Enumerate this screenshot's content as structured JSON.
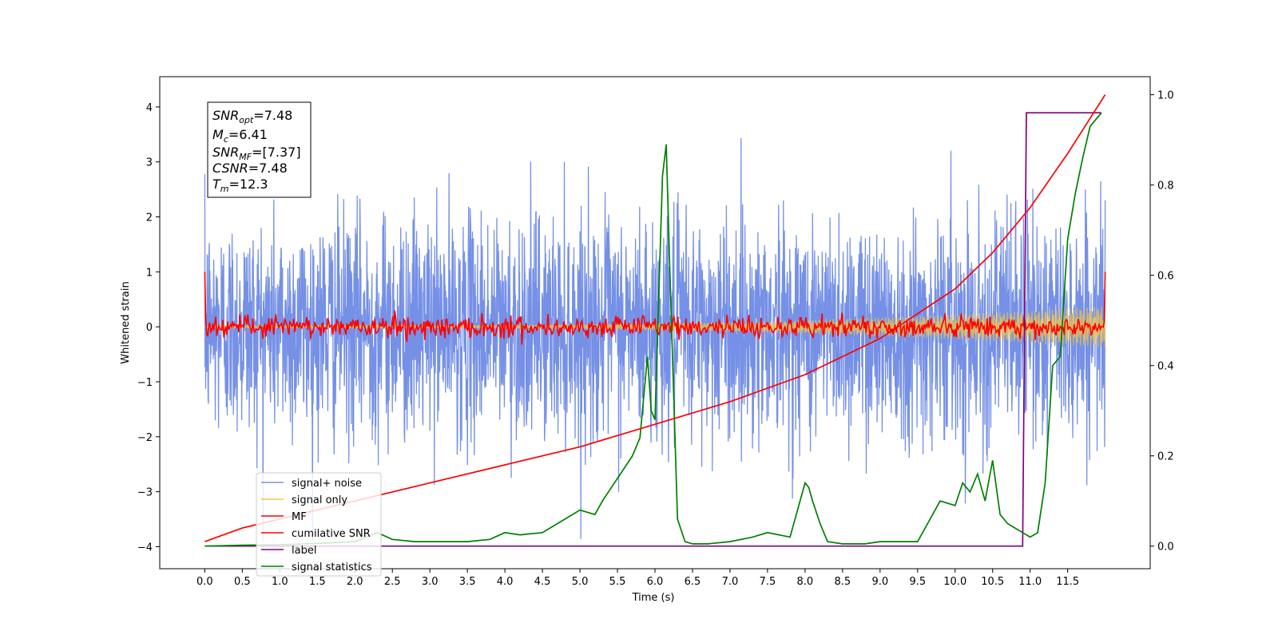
{
  "chart_data": {
    "type": "line",
    "xlabel": "Time (s)",
    "ylabel": "Whitened strain",
    "xlim": [
      -0.6,
      12.6
    ],
    "ylim": [
      -4.4,
      4.55
    ],
    "y2lim": [
      -0.05,
      1.04
    ],
    "x_ticks": [
      "0.0",
      "0.5",
      "1.0",
      "1.5",
      "2.0",
      "2.5",
      "3.0",
      "3.5",
      "4.0",
      "4.5",
      "5.0",
      "5.5",
      "6.0",
      "6.5",
      "7.0",
      "7.5",
      "8.0",
      "8.5",
      "9.0",
      "9.5",
      "10.0",
      "10.5",
      "11.0",
      "11.5"
    ],
    "y_ticks": [
      4,
      3,
      2,
      1,
      0,
      -1,
      -2,
      -3,
      -4
    ],
    "y_tick_labels": [
      "4",
      "3",
      "2",
      "1",
      "0",
      "−1",
      "−2",
      "−3",
      "−4"
    ],
    "y2_ticks": [
      1.0,
      0.8,
      0.6,
      0.4,
      0.2,
      0.0
    ],
    "y2_tick_labels": [
      "1.0",
      "0.8",
      "0.6",
      "0.4",
      "0.2",
      "0.0"
    ],
    "series": [
      {
        "name": "signal+ noise",
        "axis": "left",
        "color": "#7590e6",
        "kind": "noise",
        "x_range": [
          0,
          12.0
        ],
        "std": 1.0,
        "max": 4.17,
        "min": -3.9
      },
      {
        "name": "signal only",
        "axis": "left",
        "color": "#f5c542",
        "kind": "chirp",
        "x_range": [
          0,
          12.0
        ],
        "envelope_start": 0.02,
        "envelope_end": 0.38
      },
      {
        "name": "MF",
        "axis": "left",
        "color": "#ff0000",
        "kind": "noise",
        "x_range": [
          0,
          12.0
        ],
        "std": 0.1,
        "start_value": 1.0,
        "end_value": 1.0
      },
      {
        "name": "cumilative SNR",
        "axis": "right",
        "color": "#ff0000",
        "x": [
          0.0,
          0.5,
          1.0,
          2.0,
          3.0,
          4.0,
          5.0,
          6.0,
          7.0,
          8.0,
          9.0,
          10.0,
          10.5,
          11.0,
          11.5,
          12.0
        ],
        "y": [
          0.01,
          0.04,
          0.06,
          0.1,
          0.14,
          0.18,
          0.22,
          0.27,
          0.32,
          0.38,
          0.46,
          0.57,
          0.65,
          0.75,
          0.87,
          1.0
        ]
      },
      {
        "name": "label",
        "axis": "right",
        "color": "#800080",
        "x": [
          0.0,
          10.9,
          10.9,
          10.95,
          11.95
        ],
        "y": [
          0.0,
          0.0,
          0.0,
          0.96,
          0.96
        ]
      },
      {
        "name": "signal statistics",
        "axis": "right",
        "color": "#008000",
        "x": [
          0.0,
          0.5,
          1.0,
          1.5,
          2.0,
          2.3,
          2.5,
          2.8,
          3.0,
          3.5,
          3.8,
          4.0,
          4.2,
          4.5,
          4.7,
          5.0,
          5.2,
          5.3,
          5.5,
          5.7,
          5.8,
          5.9,
          5.95,
          6.0,
          6.05,
          6.1,
          6.15,
          6.2,
          6.3,
          6.4,
          6.5,
          6.7,
          7.0,
          7.3,
          7.5,
          7.8,
          8.0,
          8.05,
          8.1,
          8.2,
          8.3,
          8.5,
          8.8,
          9.0,
          9.3,
          9.5,
          9.8,
          10.0,
          10.1,
          10.2,
          10.3,
          10.4,
          10.5,
          10.6,
          10.7,
          10.9,
          11.0,
          11.1,
          11.2,
          11.3,
          11.4,
          11.5,
          11.6,
          11.7,
          11.8,
          11.95
        ],
        "y": [
          0.0,
          0.002,
          0.003,
          0.006,
          0.01,
          0.03,
          0.015,
          0.01,
          0.01,
          0.01,
          0.015,
          0.03,
          0.025,
          0.03,
          0.05,
          0.08,
          0.07,
          0.1,
          0.15,
          0.2,
          0.24,
          0.42,
          0.3,
          0.28,
          0.55,
          0.82,
          0.89,
          0.6,
          0.06,
          0.01,
          0.005,
          0.005,
          0.01,
          0.02,
          0.03,
          0.02,
          0.14,
          0.13,
          0.1,
          0.05,
          0.01,
          0.005,
          0.005,
          0.01,
          0.01,
          0.01,
          0.1,
          0.09,
          0.14,
          0.12,
          0.16,
          0.1,
          0.19,
          0.07,
          0.05,
          0.03,
          0.02,
          0.03,
          0.14,
          0.4,
          0.42,
          0.68,
          0.78,
          0.86,
          0.93,
          0.96
        ]
      }
    ],
    "legend": {
      "placement": "lower-left",
      "entries": [
        "signal+ noise",
        "signal only",
        "MF",
        "cumilative SNR",
        "label",
        "signal statistics"
      ]
    },
    "annotations": [
      {
        "label": "SNR",
        "sub": "opt",
        "value": "=7.48"
      },
      {
        "label": "M",
        "sub": "c",
        "value": "=6.41"
      },
      {
        "label": "SNR",
        "sub": "MF",
        "value": "=[7.37]"
      },
      {
        "label": "CSNR",
        "sub": "",
        "value": "=7.48"
      },
      {
        "label": "T",
        "sub": "m",
        "value": "=12.3"
      }
    ],
    "grid": false
  }
}
